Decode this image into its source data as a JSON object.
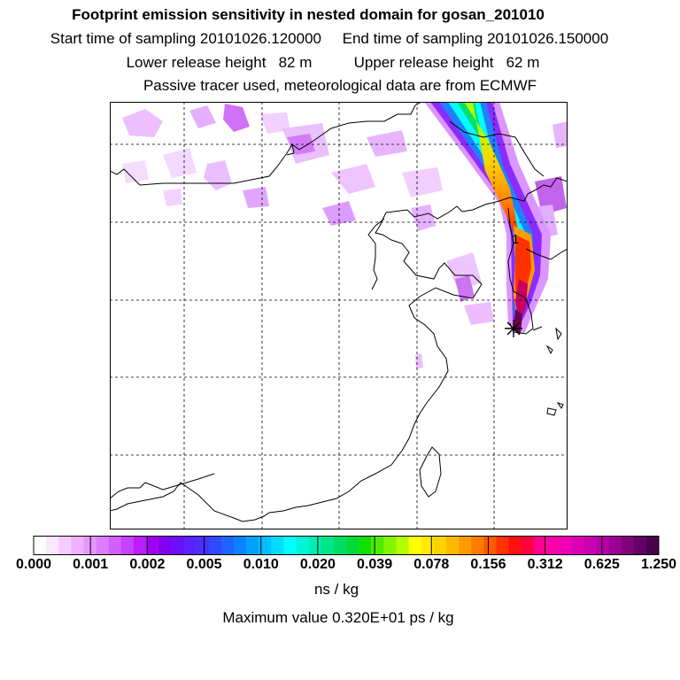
{
  "title": {
    "line1": "Footprint emission sensitivity in nested domain for gosan_201010",
    "line2": "Start time of sampling 20101026.120000     End time of sampling 20101026.150000",
    "line3": "Lower release height   82 m          Upper release height   62 m",
    "line4": "Passive tracer used, meteorological data are from ECMWF"
  },
  "map": {
    "release_label": "1",
    "plume_colors": [
      "#e8a8ff",
      "#b400ff",
      "#0078ff",
      "#00ffff",
      "#00e070",
      "#b4ff00",
      "#ffd200",
      "#ff8c00",
      "#ff1e1e",
      "#c80064",
      "#6e0050"
    ]
  },
  "colorbar": {
    "labels": [
      "0.000",
      "0.001",
      "0.002",
      "0.005",
      "0.010",
      "0.020",
      "0.039",
      "0.078",
      "0.156",
      "0.312",
      "0.625",
      "1.250"
    ],
    "colors": [
      "#ffffff",
      "#fbe6ff",
      "#f5ccff",
      "#eeb2ff",
      "#e698ff",
      "#dc7cff",
      "#d260ff",
      "#c640ff",
      "#b81cff",
      "#a000f0",
      "#8200f0",
      "#6a10ff",
      "#5a20ff",
      "#4a30ff",
      "#3048ff",
      "#1e64ff",
      "#0a82ff",
      "#00a0ff",
      "#00c0ff",
      "#00dcff",
      "#00ffff",
      "#00f5d8",
      "#00ecb0",
      "#00e48c",
      "#00dc64",
      "#00d83c",
      "#10e000",
      "#50ec00",
      "#86f400",
      "#b4ff00",
      "#ffff00",
      "#ffea00",
      "#ffd200",
      "#ffb800",
      "#ff9c00",
      "#ff7c00",
      "#ff5a00",
      "#ff3200",
      "#ff1010",
      "#ff0040",
      "#ff0090",
      "#ff00a8",
      "#f000b4",
      "#dc00b4",
      "#c800b0",
      "#b400a8",
      "#9a0094",
      "#7e007a",
      "#640064",
      "#4a004a"
    ],
    "unit": "ns / kg",
    "max_value": "Maximum value  0.320E+01 ps / kg"
  }
}
